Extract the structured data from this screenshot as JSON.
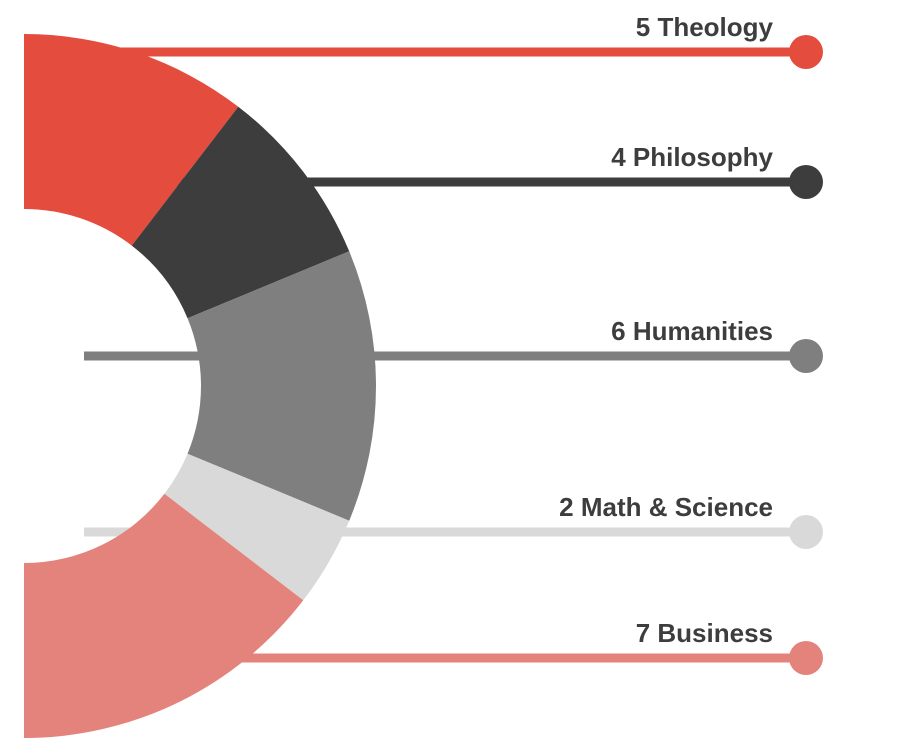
{
  "chart_data": {
    "type": "pie",
    "variant": "half-donut",
    "slices": [
      {
        "value": 5,
        "label": "Theology",
        "color": "#e44c3d"
      },
      {
        "value": 4,
        "label": "Philosophy",
        "color": "#3d3d3d"
      },
      {
        "value": 6,
        "label": "Humanities",
        "color": "#7f7f7f"
      },
      {
        "value": 2,
        "label": "Math & Science",
        "color": "#d9d9d9"
      },
      {
        "value": 7,
        "label": "Business",
        "color": "#e4837c"
      }
    ],
    "title": "",
    "legend": "none"
  }
}
